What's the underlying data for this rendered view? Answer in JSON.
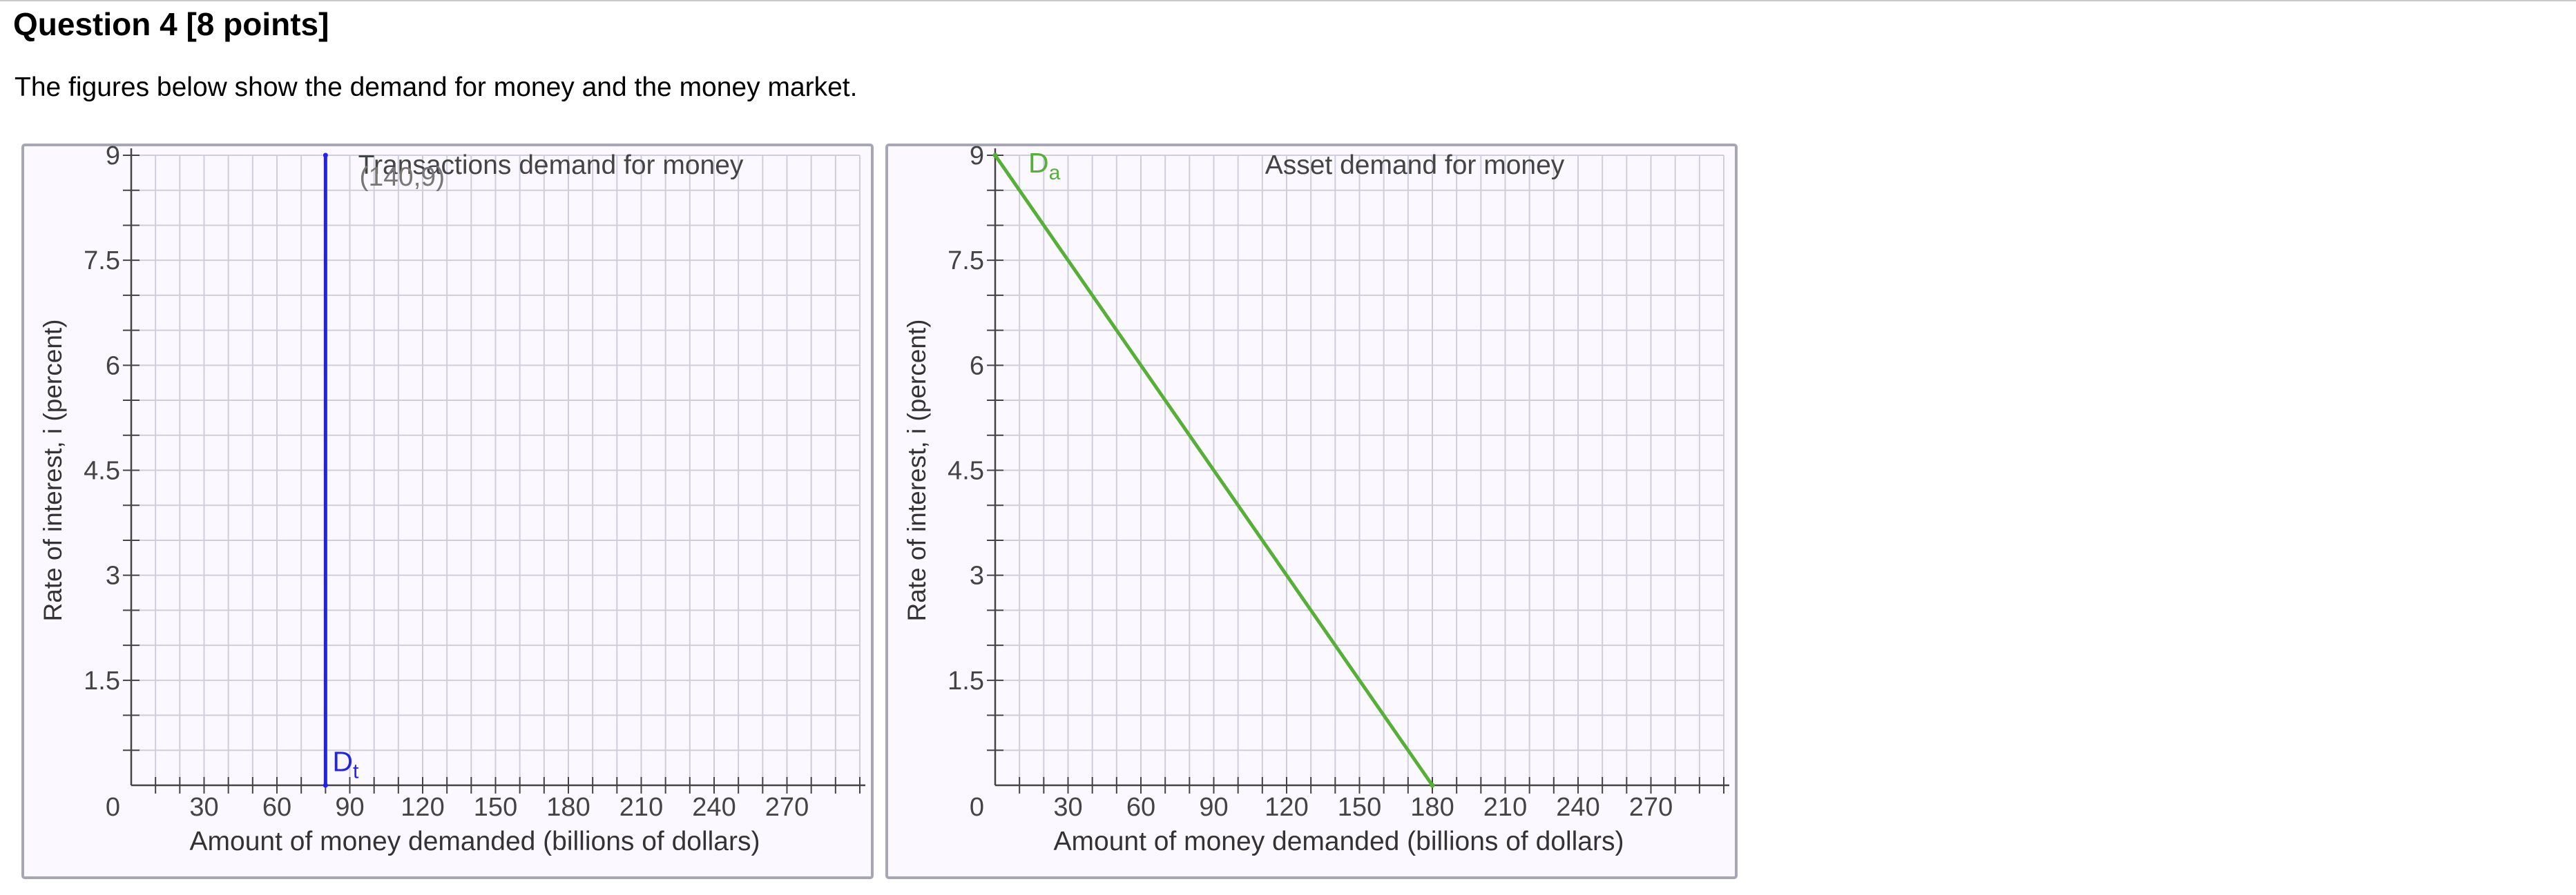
{
  "question": {
    "title": "Question 4 [8 points]",
    "description": "The figures below show the demand for money and the money market."
  },
  "chart_data": [
    {
      "type": "line",
      "title": "Transactions demand for money",
      "xlabel": "Amount of money demanded (billions of dollars)",
      "ylabel": "Rate of interest, i (percent)",
      "xlim": [
        0,
        300
      ],
      "ylim": [
        0,
        9
      ],
      "x_ticks": [
        "0",
        "30",
        "60",
        "90",
        "120",
        "150",
        "180",
        "210",
        "240",
        "270"
      ],
      "y_ticks": [
        "1.5",
        "3",
        "4.5",
        "6",
        "7.5",
        "9"
      ],
      "grid": true,
      "series": [
        {
          "name": "Dt",
          "label_main": "D",
          "label_sub": "t",
          "color": "#2222ee",
          "points": [
            [
              80,
              0
            ],
            [
              80,
              9
            ]
          ]
        }
      ],
      "annotations": [
        {
          "text": "(140,9)",
          "x": 140,
          "y": 9
        }
      ]
    },
    {
      "type": "line",
      "title": "Asset demand for money",
      "xlabel": "Amount of money demanded (billions of dollars)",
      "ylabel": "Rate of interest, i (percent)",
      "xlim": [
        0,
        300
      ],
      "ylim": [
        0,
        9
      ],
      "x_ticks": [
        "0",
        "30",
        "60",
        "90",
        "120",
        "150",
        "180",
        "210",
        "240",
        "270"
      ],
      "y_ticks": [
        "1.5",
        "3",
        "4.5",
        "6",
        "7.5",
        "9"
      ],
      "grid": true,
      "series": [
        {
          "name": "Da",
          "label_main": "D",
          "label_sub": "a",
          "color": "#55b035",
          "points": [
            [
              0,
              9
            ],
            [
              180,
              0
            ]
          ]
        }
      ],
      "annotations": []
    }
  ]
}
